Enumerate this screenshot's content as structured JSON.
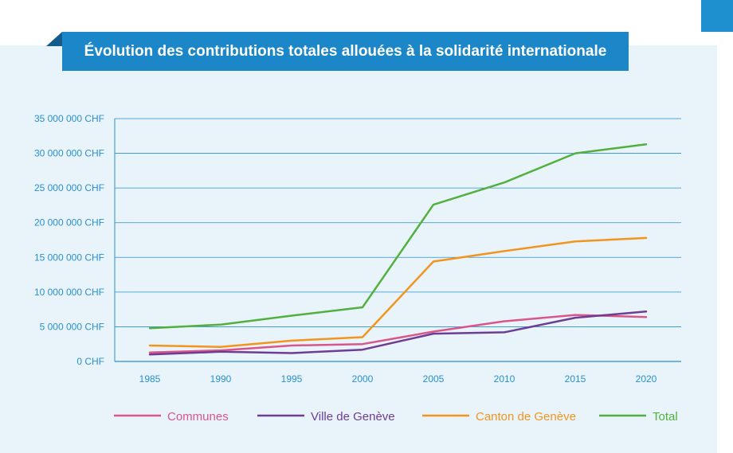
{
  "colors": {
    "panel": "#e8f4fa",
    "title_bg": "#1b87c9",
    "axis_text": "#2a8fcf",
    "gridline": "#2a8fcf"
  },
  "chart_data": {
    "type": "line",
    "title": "Évolution des contributions totales allouées à la solidarité internationale",
    "x": [
      "1985",
      "1990",
      "1995",
      "2000",
      "2005",
      "2010",
      "2015",
      "2020"
    ],
    "y_ticks": [
      "0 CHF",
      "5 000 000 CHF",
      "10 000 000 CHF",
      "15 000 000 CHF",
      "20 000 000 CHF",
      "25 000 000 CHF",
      "30 000 000 CHF",
      "35 000 000 CHF"
    ],
    "ylim": [
      0,
      35000000
    ],
    "grid": true,
    "legend_position": "bottom",
    "series": [
      {
        "name": "Communes",
        "color": "#d9568a",
        "values": [
          1300000,
          1600000,
          2300000,
          2500000,
          4300000,
          5800000,
          6700000,
          6400000
        ]
      },
      {
        "name": "Ville de Genève",
        "color": "#6e3c93",
        "values": [
          1000000,
          1400000,
          1200000,
          1700000,
          4000000,
          4200000,
          6300000,
          7200000
        ]
      },
      {
        "name": "Canton de Genève",
        "color": "#f2951f",
        "values": [
          2300000,
          2100000,
          3000000,
          3500000,
          14400000,
          15900000,
          17300000,
          17800000
        ]
      },
      {
        "name": "Total",
        "color": "#53b03f",
        "values": [
          4800000,
          5300000,
          6600000,
          7800000,
          22600000,
          25800000,
          30000000,
          31300000
        ]
      }
    ]
  }
}
